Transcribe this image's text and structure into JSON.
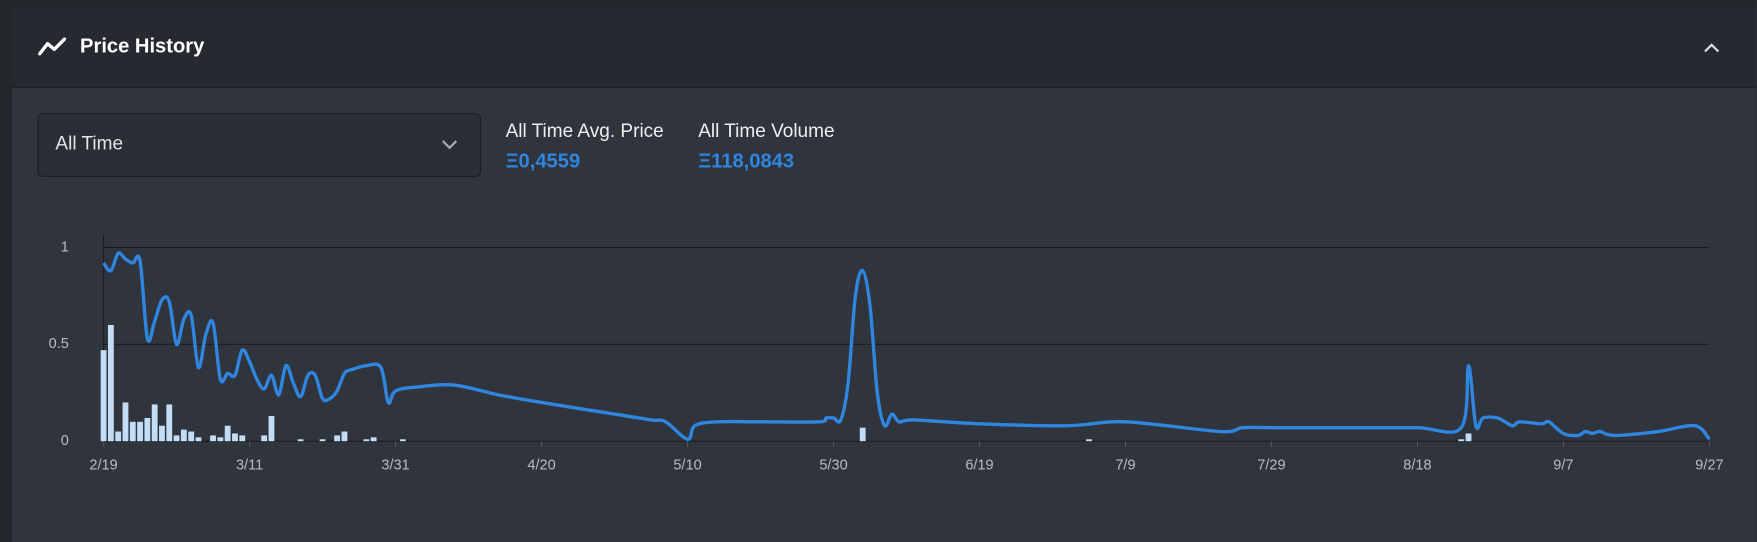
{
  "header": {
    "title": "Price History"
  },
  "filter": {
    "selected": "All Time"
  },
  "stats": [
    {
      "label": "All Time Avg. Price",
      "value": "Ξ0,4559"
    },
    {
      "label": "All Time Volume",
      "value": "Ξ118,0843"
    }
  ],
  "chart_data": {
    "type": "line",
    "xlim": [
      "2/19",
      "9/27"
    ],
    "xticks": [
      "2/19",
      "3/11",
      "3/31",
      "4/20",
      "5/10",
      "5/30",
      "6/19",
      "7/9",
      "7/29",
      "8/18",
      "9/7",
      "9/27"
    ],
    "ylim": [
      0,
      1
    ],
    "yticks": [
      0,
      0.5,
      1
    ],
    "grid": true,
    "series": [
      {
        "type": "bar",
        "color": "#c3ddf6",
        "x": [
          "2/19",
          "2/20",
          "2/21",
          "2/22",
          "2/23",
          "2/24",
          "2/25",
          "2/26",
          "2/27",
          "2/28",
          "3/1",
          "3/2",
          "3/3",
          "3/4",
          "3/6",
          "3/7",
          "3/8",
          "3/9",
          "3/10",
          "3/13",
          "3/14",
          "3/18",
          "3/21",
          "3/23",
          "3/24",
          "3/27",
          "3/28",
          "4/1",
          "6/3",
          "7/4",
          "8/24",
          "8/25"
        ],
        "values": [
          0.47,
          0.6,
          0.05,
          0.2,
          0.1,
          0.1,
          0.12,
          0.19,
          0.08,
          0.19,
          0.03,
          0.06,
          0.05,
          0.02,
          0.03,
          0.02,
          0.08,
          0.04,
          0.03,
          0.03,
          0.13,
          0.01,
          0.01,
          0.03,
          0.05,
          0.01,
          0.02,
          0.01,
          0.07,
          0.01,
          0.01,
          0.04
        ]
      },
      {
        "type": "line",
        "color": "#2f86e0",
        "x": [
          "2/19",
          "2/20",
          "2/21",
          "2/22",
          "2/23",
          "2/24",
          "2/25",
          "2/26",
          "2/27",
          "2/28",
          "3/1",
          "3/2",
          "3/3",
          "3/4",
          "3/5",
          "3/6",
          "3/7",
          "3/8",
          "3/9",
          "3/10",
          "3/11",
          "3/12",
          "3/13",
          "3/14",
          "3/15",
          "3/16",
          "3/17",
          "3/18",
          "3/19",
          "3/20",
          "3/21",
          "3/22",
          "3/23",
          "3/24",
          "3/25",
          "3/27",
          "3/29",
          "3/30",
          "3/31",
          "4/3",
          "4/8",
          "4/14",
          "4/20",
          "4/30",
          "5/5",
          "5/7",
          "5/10",
          "5/11",
          "5/14",
          "5/20",
          "5/28",
          "5/29",
          "5/30",
          "5/31",
          "6/1",
          "6/2",
          "6/3",
          "6/4",
          "6/5",
          "6/6",
          "6/7",
          "6/8",
          "6/10",
          "6/19",
          "7/1",
          "7/9",
          "7/22",
          "7/25",
          "7/29",
          "8/10",
          "8/18",
          "8/24",
          "8/25",
          "8/26",
          "8/27",
          "8/29",
          "8/31",
          "9/1",
          "9/4",
          "9/5",
          "9/7",
          "9/9",
          "9/10",
          "9/11",
          "9/12",
          "9/14",
          "9/20",
          "9/25",
          "9/27"
        ],
        "values": [
          0.92,
          0.88,
          0.97,
          0.94,
          0.92,
          0.93,
          0.53,
          0.62,
          0.73,
          0.72,
          0.5,
          0.63,
          0.65,
          0.38,
          0.55,
          0.61,
          0.32,
          0.35,
          0.34,
          0.47,
          0.41,
          0.32,
          0.27,
          0.34,
          0.24,
          0.39,
          0.3,
          0.23,
          0.34,
          0.34,
          0.22,
          0.22,
          0.26,
          0.35,
          0.37,
          0.39,
          0.38,
          0.2,
          0.26,
          0.28,
          0.29,
          0.24,
          0.2,
          0.14,
          0.11,
          0.1,
          0.01,
          0.08,
          0.1,
          0.1,
          0.1,
          0.12,
          0.12,
          0.11,
          0.3,
          0.75,
          0.88,
          0.7,
          0.25,
          0.08,
          0.14,
          0.1,
          0.11,
          0.09,
          0.08,
          0.1,
          0.05,
          0.07,
          0.07,
          0.07,
          0.07,
          0.07,
          0.39,
          0.08,
          0.12,
          0.12,
          0.08,
          0.1,
          0.09,
          0.1,
          0.04,
          0.03,
          0.05,
          0.04,
          0.05,
          0.03,
          0.05,
          0.08,
          0.01
        ]
      }
    ]
  }
}
